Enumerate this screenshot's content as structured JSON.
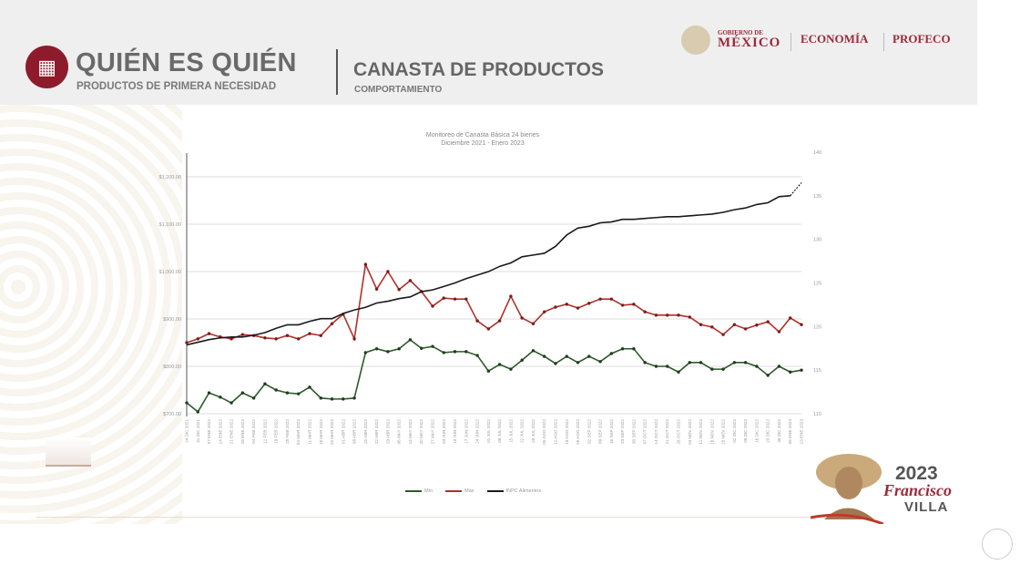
{
  "header": {
    "brand_title": "QUIÉN ES QUIÉN",
    "brand_subtitle": "PRODUCTOS DE PRIMERA NECESIDAD",
    "section_title": "CANASTA DE PRODUCTOS",
    "section_subtitle": "COMPORTAMIENTO",
    "gob_small": "GOBIERNO DE",
    "gob_big": "MÉXICO",
    "agency_1": "ECONOMÍA",
    "agency_2": "PROFECO"
  },
  "footer": {
    "year": "2023",
    "name_1": "Francisco",
    "name_2": "VILLA"
  },
  "colors": {
    "min": "#2f5a2a",
    "max": "#b0312a",
    "inpc": "#1a1a1a",
    "brand": "#8e1b2b"
  },
  "chart_data": {
    "type": "line",
    "title": "Monitoreo de Canasta Básica 24 bienes",
    "subtitle": "Diciembre 2021 - Enero 2023",
    "grid": true,
    "legend_position": "bottom",
    "y_left": {
      "ticks": [
        "$700.00",
        "$800.00",
        "$900.00",
        "$1,000.00",
        "$1,100.00",
        "$1,200.00"
      ],
      "range": [
        700,
        1200
      ]
    },
    "y_right": {
      "ticks": [
        "110",
        "115",
        "120",
        "125",
        "130",
        "135",
        "140"
      ],
      "range": [
        110,
        140
      ]
    },
    "categories": [
      "24 DIC 2021",
      "31 DIC 2021",
      "07 ENE 2022",
      "14 ENE 2022",
      "21 ENE 2022",
      "28 ENE 2022",
      "04 FEB 2022",
      "11 FEB 2022",
      "18 FEB 2022",
      "25 FEB 2022",
      "04 MAR 2022",
      "11 MAR 2022",
      "18 MAR 2022",
      "25 MAR 2022",
      "01 ABR 2022",
      "08 ABR 2022",
      "15 ABR 2022",
      "22 ABR 2022",
      "29 ABR 2022",
      "06 MAY 2022",
      "13 MAY 2022",
      "20 MAY 2022",
      "27 MAY 2022",
      "03 JUN 2022",
      "10 JUN 2022",
      "17 JUN 2022",
      "24 JUN 2022",
      "01 JUL 2022",
      "08 JUL 2022",
      "15 JUL 2022",
      "22 JUL 2022",
      "29 JUL 2022",
      "05 AGO 2022",
      "12 AGO 2022",
      "19 AGO 2022",
      "26 AGO 2022",
      "02 SEP 2022",
      "09 SEP 2022",
      "16 SEP 2022",
      "23 SEP 2022",
      "30 SEP 2022",
      "07 OCT 2022",
      "14 OCT 2022",
      "21 OCT 2022",
      "28 OCT 2022",
      "04 NOV 2022",
      "11 NOV 2022",
      "18 NOV 2022",
      "25 NOV 2022",
      "02 DIC 2022",
      "09 DIC 2022",
      "16 DIC 2022",
      "23 DIC 2022",
      "30 DIC 2022",
      "06 ENE 2023",
      "13 ENE 2023"
    ],
    "series": [
      {
        "name": "Mín",
        "axis": "left",
        "values": [
          723,
          704,
          744,
          735,
          723,
          744,
          733,
          763,
          750,
          744,
          742,
          756,
          733,
          731,
          731,
          733,
          829,
          837,
          831,
          837,
          856,
          838,
          842,
          829,
          831,
          831,
          823,
          790,
          804,
          794,
          813,
          833,
          821,
          806,
          821,
          808,
          821,
          810,
          827,
          837,
          837,
          808,
          800,
          800,
          788,
          808,
          808,
          794,
          794,
          808,
          808,
          800,
          781,
          800,
          788,
          792
        ]
      },
      {
        "name": "Máx",
        "axis": "left",
        "values": [
          850,
          858,
          869,
          862,
          858,
          867,
          865,
          860,
          858,
          865,
          858,
          869,
          865,
          890,
          910,
          858,
          1015,
          963,
          1000,
          962,
          981,
          958,
          927,
          944,
          942,
          942,
          896,
          879,
          896,
          948,
          902,
          890,
          915,
          925,
          931,
          923,
          933,
          942,
          942,
          929,
          931,
          915,
          908,
          908,
          908,
          904,
          888,
          883,
          867,
          888,
          879,
          887,
          894,
          873,
          902,
          888
        ]
      },
      {
        "name": "INPC Alimentos",
        "axis": "right",
        "values": [
          117.9,
          118.2,
          118.5,
          118.7,
          118.8,
          118.8,
          119.0,
          119.3,
          119.8,
          120.2,
          120.2,
          120.6,
          120.9,
          120.9,
          121.5,
          121.9,
          122.2,
          122.7,
          122.9,
          123.2,
          123.4,
          124.0,
          124.2,
          124.6,
          125.0,
          125.5,
          125.9,
          126.3,
          126.9,
          127.3,
          128.0,
          128.2,
          128.4,
          129.2,
          130.5,
          131.3,
          131.5,
          131.9,
          132.0,
          132.3,
          132.3,
          132.4,
          132.5,
          132.6,
          132.6,
          132.7,
          132.8,
          132.9,
          133.1,
          133.4,
          133.6,
          134.0,
          134.2,
          134.9,
          135.0,
          136.5
        ]
      }
    ]
  }
}
